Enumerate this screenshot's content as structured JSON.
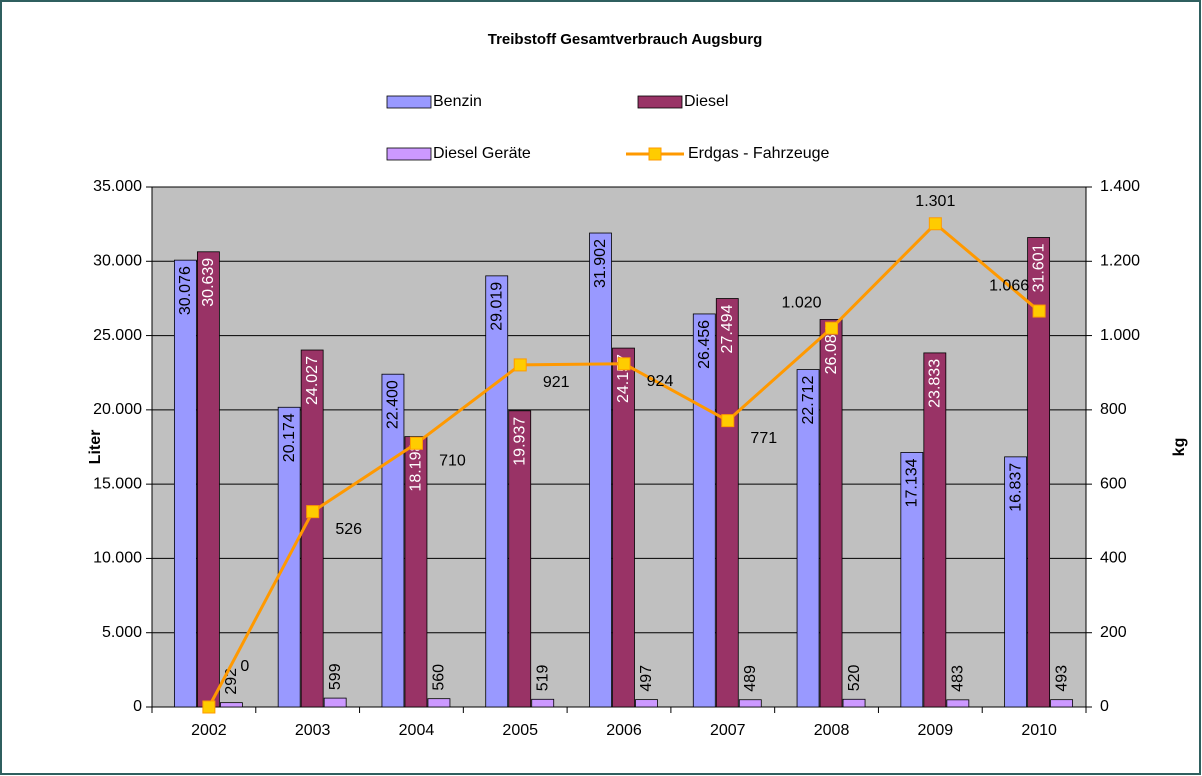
{
  "chart_data": {
    "type": "bar",
    "title": "Treibstoff Gesamtverbrauch Augsburg",
    "y_label": "Liter",
    "y2_label": "kg",
    "categories": [
      "2002",
      "2003",
      "2004",
      "2005",
      "2006",
      "2007",
      "2008",
      "2009",
      "2010"
    ],
    "series": [
      {
        "name": "Benzin",
        "color": "#9999ff",
        "type": "bar",
        "values": [
          30076,
          20174,
          22400,
          29019,
          31902,
          26456,
          22712,
          17134,
          16837
        ],
        "value_labels": [
          "30.076",
          "20.174",
          "22.400",
          "29.019",
          "31.902",
          "26.456",
          "22.712",
          "17.134",
          "16.837"
        ]
      },
      {
        "name": "Diesel",
        "color": "#993366",
        "type": "bar",
        "values": [
          30639,
          24027,
          18198,
          19937,
          24157,
          27494,
          26084,
          23833,
          31601
        ],
        "value_labels": [
          "30.639",
          "24.027",
          "18.198",
          "19.937",
          "24.157",
          "27.494",
          "26.084",
          "23.833",
          "31.601"
        ]
      },
      {
        "name": "Diesel Geräte",
        "color": "#cc99ff",
        "type": "bar",
        "values": [
          292,
          599,
          560,
          519,
          497,
          489,
          520,
          483,
          493
        ]
      },
      {
        "name": "Erdgas - Fahrzeuge",
        "color": "#ff9900",
        "marker_color": "#ffcc00",
        "type": "line",
        "axis": "y2",
        "values": [
          0,
          526,
          710,
          921,
          924,
          771,
          1020,
          1301,
          1066
        ],
        "value_labels": [
          "0",
          "526",
          "710",
          "921",
          "924",
          "771",
          "1.020",
          "1.301",
          "1.066"
        ]
      }
    ],
    "ylim": [
      0,
      35000
    ],
    "yticks": [
      {
        "value": 0,
        "label": "0"
      },
      {
        "value": 5000,
        "label": "5.000"
      },
      {
        "value": 10000,
        "label": "10.000"
      },
      {
        "value": 15000,
        "label": "15.000"
      },
      {
        "value": 20000,
        "label": "20.000"
      },
      {
        "value": 25000,
        "label": "25.000"
      },
      {
        "value": 30000,
        "label": "30.000"
      },
      {
        "value": 35000,
        "label": "35.000"
      }
    ],
    "y2lim": [
      0,
      1400
    ],
    "y2ticks": [
      0,
      200,
      400,
      600,
      800,
      {
        "value": 1000,
        "label": "1.000"
      },
      {
        "value": 1200,
        "label": "1.200"
      },
      {
        "value": 1400,
        "label": "1.400"
      }
    ],
    "grid": true,
    "plot_background": "#c0c0c0"
  }
}
